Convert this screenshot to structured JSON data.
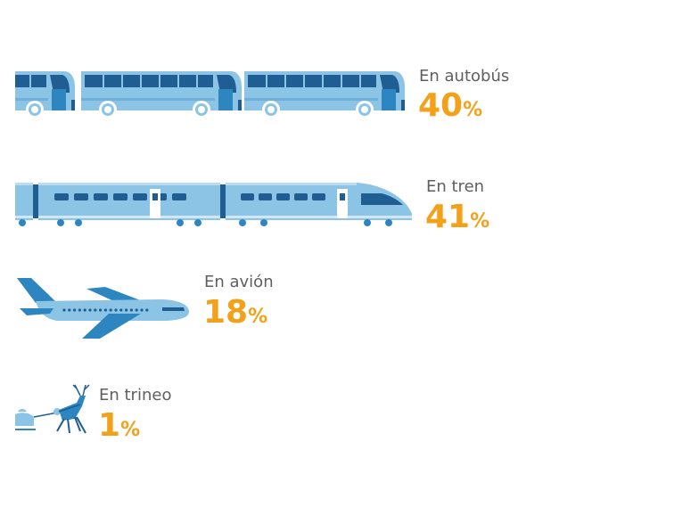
{
  "chart_data": {
    "type": "bar",
    "title": "",
    "xlabel": "",
    "ylabel": "",
    "unit": "%",
    "categories": [
      "En autobús",
      "En tren",
      "En avión",
      "En trineo"
    ],
    "values": [
      40,
      41,
      18,
      1
    ],
    "icons": [
      "bus-icon",
      "train-icon",
      "airplane-icon",
      "reindeer-sleigh-icon"
    ],
    "colors": {
      "vehicle": "#8cc4e6",
      "vehicle_dark": "#1f5d92",
      "accent": "#2e86c1",
      "value": "#f2a21a",
      "label": "#5f5f5f"
    }
  }
}
